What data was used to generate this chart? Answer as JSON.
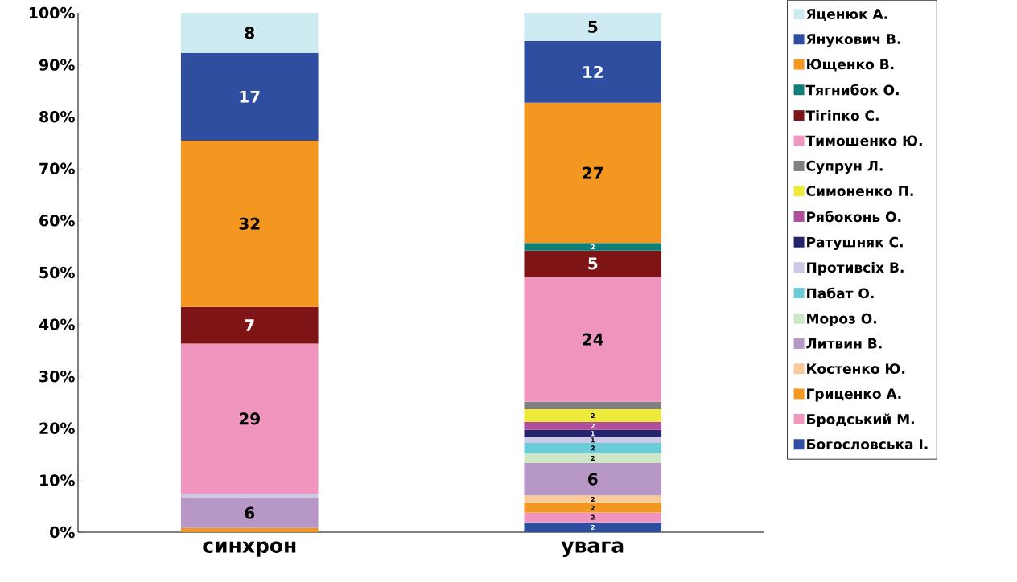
{
  "chart_data": {
    "type": "bar",
    "stacked": true,
    "categories": [
      "синхрон",
      "увага"
    ],
    "ylim": [
      0,
      100
    ],
    "yticks": [
      {
        "value": 0,
        "label": "0%"
      },
      {
        "value": 10,
        "label": "10%"
      },
      {
        "value": 20,
        "label": "20%"
      },
      {
        "value": 30,
        "label": "30%"
      },
      {
        "value": 40,
        "label": "40%"
      },
      {
        "value": 50,
        "label": "50%"
      },
      {
        "value": 60,
        "label": "60%"
      },
      {
        "value": 70,
        "label": "70%"
      },
      {
        "value": 80,
        "label": "80%"
      },
      {
        "value": 90,
        "label": "90%"
      },
      {
        "value": 100,
        "label": "100%"
      }
    ],
    "grid": false,
    "legend": "right",
    "series": [
      {
        "name": "Богословська І.",
        "color": "#2e4fa0",
        "values": [
          null,
          1.9
        ],
        "value_labels": [
          null,
          "2"
        ]
      },
      {
        "name": "Бродський М.",
        "color": "#f096be",
        "values": [
          null,
          1.9
        ],
        "value_labels": [
          null,
          "2"
        ]
      },
      {
        "name": "Гриценко А.",
        "color": "#f39720",
        "values": [
          0.8,
          1.8
        ],
        "value_labels": [
          null,
          "2"
        ]
      },
      {
        "name": "Костенко Ю.",
        "color": "#facb98",
        "values": [
          null,
          1.5
        ],
        "value_labels": [
          null,
          "2"
        ]
      },
      {
        "name": "Литвин В.",
        "color": "#b797c6",
        "values": [
          5.8,
          6.2
        ],
        "value_labels": [
          "6",
          "6"
        ]
      },
      {
        "name": "Мороз О.",
        "color": "#cde6c6",
        "values": [
          null,
          1.9
        ],
        "value_labels": [
          null,
          "2"
        ]
      },
      {
        "name": "Пабат О.",
        "color": "#6ccbd8",
        "values": [
          null,
          2.0
        ],
        "value_labels": [
          null,
          "2"
        ]
      },
      {
        "name": "Противсіх В.",
        "color": "#cdc9e4",
        "values": [
          0.8,
          1.1
        ],
        "value_labels": [
          null,
          "1"
        ]
      },
      {
        "name": "Ратушняк С.",
        "color": "#24246e",
        "values": [
          null,
          1.4
        ],
        "value_labels": [
          null,
          "1"
        ]
      },
      {
        "name": "Рябоконь О.",
        "color": "#b24f9c",
        "values": [
          null,
          1.5
        ],
        "value_labels": [
          null,
          "2"
        ]
      },
      {
        "name": "Симоненко П.",
        "color": "#eeea3c",
        "values": [
          null,
          2.5
        ],
        "value_labels": [
          null,
          "2"
        ]
      },
      {
        "name": "Супрун Л.",
        "color": "#808080",
        "values": [
          null,
          1.4
        ],
        "value_labels": [
          null,
          null
        ]
      },
      {
        "name": "Тимошенко Ю.",
        "color": "#f096be",
        "values": [
          28.9,
          24.1
        ],
        "value_labels": [
          "29",
          "24"
        ]
      },
      {
        "name": "Тігіпко С.",
        "color": "#7e1416",
        "values": [
          7.1,
          5.0
        ],
        "value_labels": [
          "7",
          "5"
        ]
      },
      {
        "name": "Тягнибок О.",
        "color": "#0f7f7a",
        "values": [
          null,
          1.5
        ],
        "value_labels": [
          null,
          "2"
        ]
      },
      {
        "name": "Ющенко В.",
        "color": "#f39720",
        "values": [
          32.0,
          27.0
        ],
        "value_labels": [
          "32",
          "27"
        ]
      },
      {
        "name": "Янукович В.",
        "color": "#2e4fa0",
        "values": [
          16.9,
          11.9
        ],
        "value_labels": [
          "17",
          "12"
        ]
      },
      {
        "name": "Яценюк А.",
        "color": "#cdeaf0",
        "values": [
          7.7,
          5.4
        ],
        "value_labels": [
          "8",
          "5"
        ]
      }
    ]
  }
}
